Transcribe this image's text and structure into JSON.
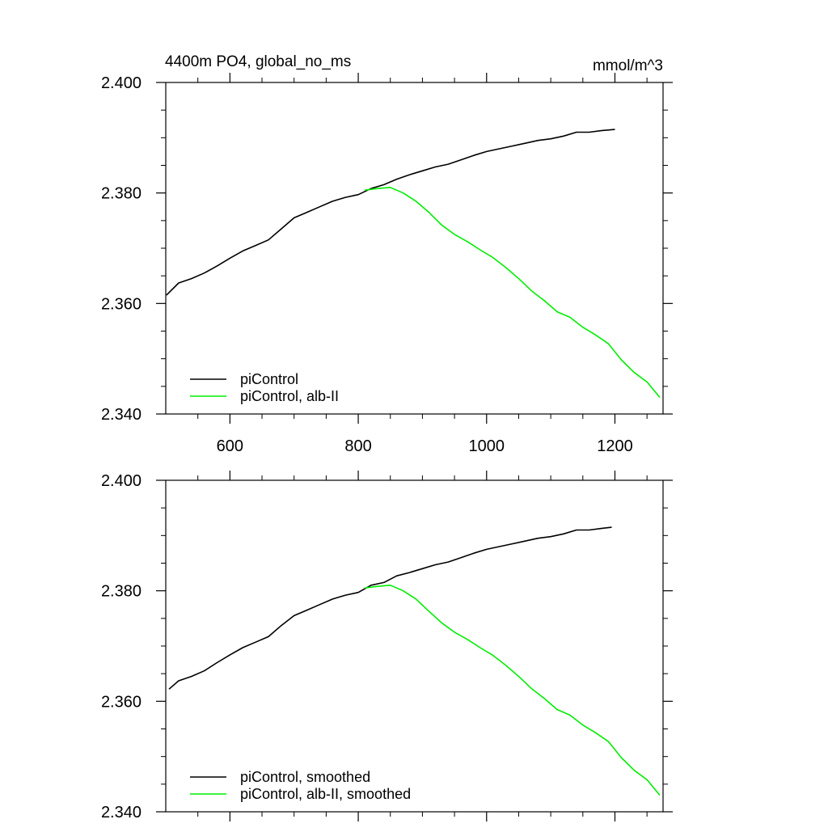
{
  "chart_data": [
    {
      "type": "line",
      "title": "4400m PO4, global_no_ms",
      "units": "mmol/m^3",
      "xlim": [
        500,
        1275
      ],
      "ylim": [
        2.34,
        2.4
      ],
      "x_ticks": [
        600,
        800,
        1000,
        1200
      ],
      "x_tick_labels": [
        "600",
        "800",
        "1000",
        "1200"
      ],
      "y_ticks": [
        2.34,
        2.36,
        2.38,
        2.4
      ],
      "y_tick_labels": [
        "2.340",
        "2.360",
        "2.380",
        "2.400"
      ],
      "grid": false,
      "legend_position": "bottom-left",
      "series": [
        {
          "name": "piControl",
          "color": "#000000",
          "x": [
            501,
            520,
            540,
            560,
            580,
            600,
            620,
            640,
            660,
            680,
            700,
            720,
            740,
            760,
            780,
            800,
            820,
            840,
            860,
            880,
            900,
            920,
            940,
            960,
            980,
            1000,
            1020,
            1040,
            1060,
            1080,
            1100,
            1120,
            1140,
            1160,
            1180,
            1200
          ],
          "y": [
            2.3615,
            2.3637,
            2.3645,
            2.3655,
            2.3668,
            2.3682,
            2.3695,
            2.3705,
            2.3715,
            2.3735,
            2.3755,
            2.3765,
            2.3775,
            2.3785,
            2.3792,
            2.3797,
            2.3808,
            2.3815,
            2.3825,
            2.3833,
            2.384,
            2.3847,
            2.3852,
            2.386,
            2.3868,
            2.3875,
            2.388,
            2.3885,
            2.389,
            2.3895,
            2.3898,
            2.3903,
            2.391,
            2.391,
            2.3913,
            2.3915
          ]
        },
        {
          "name": "piControl, alb-II",
          "color": "#00ee00",
          "x": [
            810,
            830,
            850,
            870,
            890,
            910,
            930,
            950,
            970,
            990,
            1010,
            1030,
            1050,
            1070,
            1090,
            1110,
            1130,
            1150,
            1170,
            1190,
            1210,
            1230,
            1250,
            1270
          ],
          "y": [
            2.3805,
            2.3808,
            2.381,
            2.38,
            2.3785,
            2.3765,
            2.3742,
            2.3725,
            2.3712,
            2.3697,
            2.3683,
            2.3665,
            2.3645,
            2.3623,
            2.3605,
            2.3585,
            2.3575,
            2.3557,
            2.3543,
            2.3527,
            2.3498,
            2.3475,
            2.3458,
            2.343
          ]
        }
      ]
    },
    {
      "type": "line",
      "xlim": [
        500,
        1275
      ],
      "ylim": [
        2.34,
        2.4
      ],
      "x_ticks": [
        600,
        800,
        1000,
        1200
      ],
      "y_ticks": [
        2.34,
        2.36,
        2.38,
        2.4
      ],
      "y_tick_labels": [
        "2.340",
        "2.360",
        "2.380",
        "2.400"
      ],
      "grid": false,
      "legend_position": "bottom-left",
      "series": [
        {
          "name": "piControl, smoothed",
          "color": "#000000",
          "x": [
            505,
            520,
            540,
            560,
            580,
            600,
            620,
            640,
            660,
            680,
            700,
            720,
            740,
            760,
            780,
            800,
            820,
            840,
            860,
            880,
            900,
            920,
            940,
            960,
            980,
            1000,
            1020,
            1040,
            1060,
            1080,
            1100,
            1120,
            1140,
            1160,
            1180,
            1195
          ],
          "y": [
            2.3622,
            2.3637,
            2.3645,
            2.3655,
            2.367,
            2.3684,
            2.3697,
            2.3707,
            2.3717,
            2.3737,
            2.3755,
            2.3765,
            2.3775,
            2.3785,
            2.3792,
            2.3797,
            2.381,
            2.3815,
            2.3827,
            2.3833,
            2.384,
            2.3847,
            2.3852,
            2.386,
            2.3868,
            2.3875,
            2.388,
            2.3885,
            2.389,
            2.3895,
            2.3898,
            2.3903,
            2.391,
            2.391,
            2.3913,
            2.3915
          ]
        },
        {
          "name": "piControl, alb-II, smoothed",
          "color": "#00ee00",
          "x": [
            810,
            830,
            850,
            870,
            890,
            910,
            930,
            950,
            970,
            990,
            1010,
            1030,
            1050,
            1070,
            1090,
            1110,
            1130,
            1150,
            1170,
            1190,
            1210,
            1230,
            1250,
            1270
          ],
          "y": [
            2.3805,
            2.3808,
            2.381,
            2.38,
            2.3785,
            2.3763,
            2.3742,
            2.3725,
            2.3712,
            2.3697,
            2.3683,
            2.3665,
            2.3645,
            2.3623,
            2.3605,
            2.3585,
            2.3575,
            2.3557,
            2.3543,
            2.3527,
            2.3498,
            2.3475,
            2.3458,
            2.343
          ]
        }
      ]
    }
  ]
}
